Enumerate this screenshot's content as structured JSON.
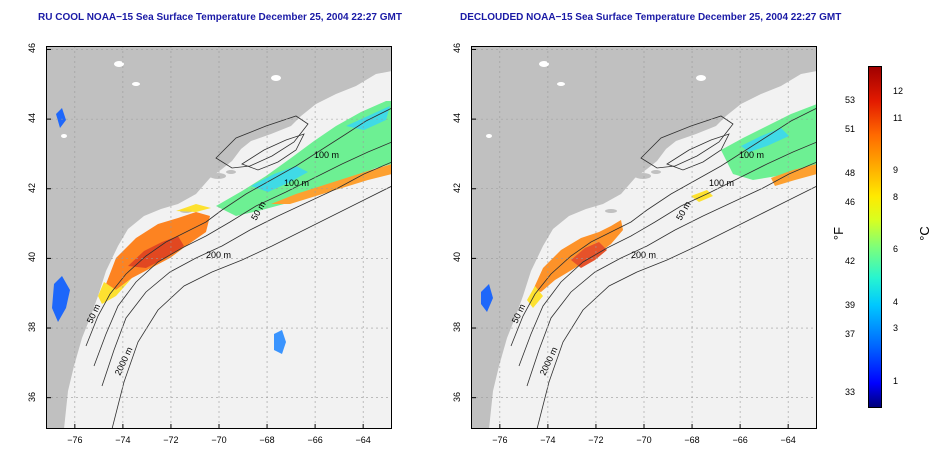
{
  "titles": {
    "left": "RU COOL NOAA−15 Sea Surface Temperature December 25, 2004 22:27 GMT",
    "right": "DECLOUDED NOAA−15 Sea Surface Temperature December 25, 2004 22:27 GMT"
  },
  "axes": {
    "lon_ticks": [
      "−76",
      "−74",
      "−72",
      "−70",
      "−68",
      "−66",
      "−64"
    ],
    "lat_ticks": [
      "46",
      "44",
      "42",
      "40",
      "38",
      "36"
    ],
    "lon_range": [
      -77.2,
      -62.8
    ],
    "lat_range": [
      35.1,
      46.1
    ]
  },
  "contours": {
    "labels_left": [
      "100 m",
      "100 m",
      "50 m",
      "200 m",
      "50 m",
      "2000 m"
    ],
    "labels_right": [
      "100 m",
      "100 m",
      "50 m",
      "200 m",
      "50 m",
      "2000 m"
    ]
  },
  "colorbar": {
    "fahrenheit_ticks": [
      "53",
      "51",
      "48",
      "46",
      "42",
      "39",
      "37",
      "33"
    ],
    "celsius_ticks": [
      "12",
      "11",
      "9",
      "8",
      "6",
      "4",
      "3",
      "1"
    ],
    "fahrenheit_unit": "°F",
    "celsius_unit": "°C",
    "range_c": [
      0,
      13
    ],
    "colors": [
      "#00007a",
      "#0000ff",
      "#0066ff",
      "#00c8ff",
      "#27f5d0",
      "#7dff7a",
      "#d8ff20",
      "#ffea00",
      "#ffb000",
      "#ff6a00",
      "#e31a00",
      "#a00000"
    ]
  },
  "colors": {
    "land": "#c0c0c0",
    "ocean": "#f2f2f2",
    "title": "#1a1aa6"
  }
}
